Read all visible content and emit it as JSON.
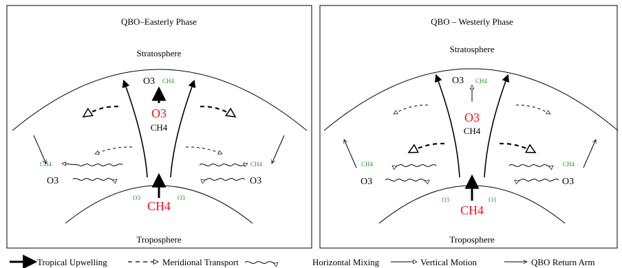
{
  "left_panel": {
    "title": "QBO–Easterly Phase",
    "stratosphere": "Stratosphere",
    "troposphere": "Troposphere",
    "top_o3": "O3",
    "top_ch4": "CH4",
    "mid_o3": "O3",
    "mid_ch4": "CH4",
    "side_ch4_left": "CH4",
    "side_o3_left": "O3",
    "side_ch4_right": "CH4",
    "side_o3_right": "O3",
    "bottom_o3_left": "O3",
    "bottom_o3_right": "O3",
    "bottom_ch4": "CH4"
  },
  "right_panel": {
    "title": "QBO – Westerly Phase",
    "stratosphere": "Stratosphere",
    "troposphere": "Troposphere",
    "top_o3": "O3",
    "top_ch4": "CH4",
    "mid_o3": "O3",
    "mid_ch4": "CH4",
    "side_ch4_left": "CH4",
    "side_o3_left": "O3",
    "side_ch4_right": "CH4",
    "side_o3_right": "O3",
    "bottom_o3_left": "O3",
    "bottom_o3_right": "O3",
    "bottom_ch4": "CH4"
  },
  "legend": {
    "tropical_upwelling": "Tropical Upwelling",
    "meridional_transport": "Meridional Transport",
    "horizontal_mixing": "Horizontal Mixing",
    "vertical_motion": "Vertical Motion",
    "qbo_return_arm": "QBO Return Arm"
  },
  "colors": {
    "red": "#e8141e",
    "green": "#1f9a1f",
    "ink": "#000000"
  }
}
